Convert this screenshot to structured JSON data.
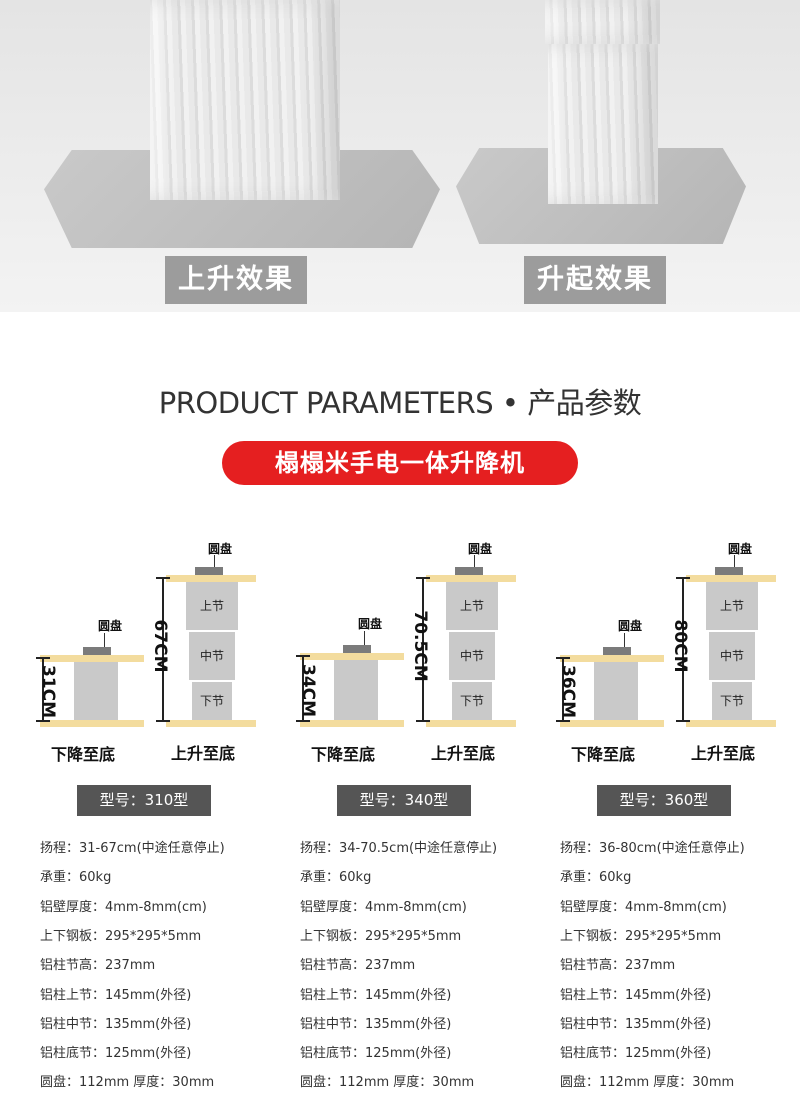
{
  "effects": {
    "raise": "上升效果",
    "lift": "升起效果"
  },
  "heading": "PRODUCT PARAMETERS • 产品参数",
  "product_name": "榻榻米手电一体升降机",
  "labels": {
    "disk": "圆盘",
    "upper": "上节",
    "middle": "中节",
    "lower": "下节",
    "down": "下降至底",
    "up": "上升至底"
  },
  "models": [
    {
      "title": "型号：310型",
      "low_height": "31CM",
      "high_height": "67CM",
      "specs": [
        "扬程：31-67cm(中途任意停止)",
        "承重：60kg",
        "铝壁厚度：4mm-8mm(cm)",
        "上下钢板：295*295*5mm",
        "铝柱节高：237mm",
        "铝柱上节：145mm(外径)",
        "铝柱中节：135mm(外径)",
        "铝柱底节：125mm(外径)",
        "圆盘：112mm 厚度：30mm"
      ]
    },
    {
      "title": "型号：340型",
      "low_height": "34CM",
      "high_height": "70.5CM",
      "specs": [
        "扬程：34-70.5cm(中途任意停止)",
        "承重：60kg",
        "铝壁厚度：4mm-8mm(cm)",
        "上下钢板：295*295*5mm",
        "铝柱节高：237mm",
        "铝柱上节：145mm(外径)",
        "铝柱中节：135mm(外径)",
        "铝柱底节：125mm(外径)",
        "圆盘：112mm 厚度：30mm"
      ]
    },
    {
      "title": "型号：360型",
      "low_height": "36CM",
      "high_height": "80CM",
      "specs": [
        "扬程：36-80cm(中途任意停止)",
        "承重：60kg",
        "铝壁厚度：4mm-8mm(cm)",
        "上下钢板：295*295*5mm",
        "铝柱节高：237mm",
        "铝柱上节：145mm(外径)",
        "铝柱中节：135mm(外径)",
        "铝柱底节：125mm(外径)",
        "圆盘：112mm 厚度：30mm"
      ]
    }
  ],
  "colors": {
    "accent_red": "#e51f20",
    "board": "#f3dc9e",
    "model_bar": "#555555"
  }
}
